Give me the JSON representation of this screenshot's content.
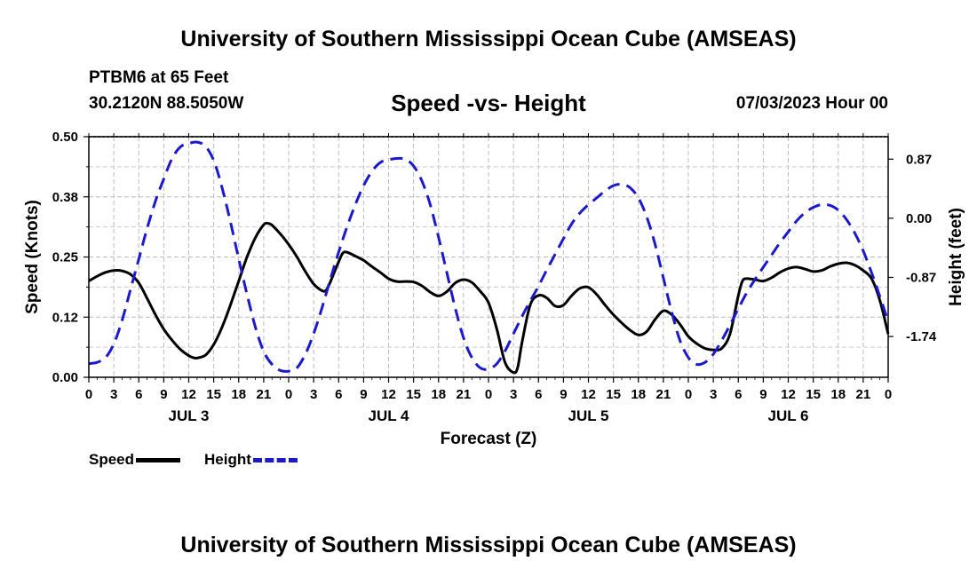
{
  "header": {
    "title": "University of Southern Mississippi Ocean Cube (AMSEAS)",
    "station": "PTBM6 at 65 Feet",
    "coordinates": "30.2120N  88.5050W",
    "chart_title": "Speed -vs- Height",
    "datetime": "07/03/2023 Hour 00"
  },
  "footer": {
    "title": "University of Southern Mississippi Ocean Cube (AMSEAS)"
  },
  "legend": {
    "speed_label": "Speed",
    "height_label": "Height"
  },
  "chart_data": {
    "type": "line",
    "title": "Speed -vs- Height",
    "xlabel": "Forecast (Z)",
    "ylabel_left": "Speed (Knots)",
    "ylabel_right": "Height (feet)",
    "x_range_hours": [
      0,
      96
    ],
    "x_tick_labels": [
      "0",
      "3",
      "6",
      "9",
      "12",
      "15",
      "18",
      "21",
      "0",
      "3",
      "6",
      "9",
      "12",
      "15",
      "18",
      "21",
      "0",
      "3",
      "6",
      "9",
      "12",
      "15",
      "18",
      "21",
      "0",
      "3",
      "6",
      "9",
      "12",
      "15",
      "18",
      "21",
      "0"
    ],
    "day_labels": [
      "JUL 3",
      "JUL 4",
      "JUL 5",
      "JUL 6"
    ],
    "left_axis": {
      "ylim": [
        0,
        0.5
      ],
      "ticks": [
        "0.00",
        "0.12",
        "0.25",
        "0.38",
        "0.50"
      ]
    },
    "right_axis": {
      "ylim": [
        -2.34,
        1.2
      ],
      "ticks": [
        "0.87",
        "0.00",
        "-0.87",
        "-1.74"
      ]
    },
    "grid": true,
    "series": [
      {
        "name": "Speed",
        "axis": "left",
        "color": "#000000",
        "style": "solid",
        "points": [
          [
            0,
            0.2
          ],
          [
            1,
            0.21
          ],
          [
            2,
            0.218
          ],
          [
            3,
            0.222
          ],
          [
            4,
            0.221
          ],
          [
            5,
            0.214
          ],
          [
            6,
            0.196
          ],
          [
            7,
            0.164
          ],
          [
            8,
            0.13
          ],
          [
            9,
            0.1
          ],
          [
            10,
            0.077
          ],
          [
            11,
            0.058
          ],
          [
            12,
            0.045
          ],
          [
            12.5,
            0.041
          ],
          [
            13,
            0.04
          ],
          [
            14,
            0.046
          ],
          [
            15,
            0.068
          ],
          [
            16,
            0.104
          ],
          [
            17,
            0.15
          ],
          [
            18,
            0.2
          ],
          [
            19,
            0.25
          ],
          [
            20,
            0.29
          ],
          [
            21,
            0.317
          ],
          [
            21.5,
            0.32
          ],
          [
            22,
            0.316
          ],
          [
            23,
            0.298
          ],
          [
            24,
            0.276
          ],
          [
            25,
            0.25
          ],
          [
            26,
            0.22
          ],
          [
            27,
            0.194
          ],
          [
            28,
            0.18
          ],
          [
            28.5,
            0.181
          ],
          [
            29,
            0.198
          ],
          [
            30,
            0.24
          ],
          [
            30.5,
            0.258
          ],
          [
            31,
            0.26
          ],
          [
            32,
            0.252
          ],
          [
            33,
            0.243
          ],
          [
            34,
            0.23
          ],
          [
            35,
            0.218
          ],
          [
            36,
            0.205
          ],
          [
            37,
            0.199
          ],
          [
            38,
            0.199
          ],
          [
            39,
            0.198
          ],
          [
            40,
            0.19
          ],
          [
            41,
            0.177
          ],
          [
            42,
            0.169
          ],
          [
            43,
            0.178
          ],
          [
            44,
            0.196
          ],
          [
            45,
            0.203
          ],
          [
            46,
            0.197
          ],
          [
            47,
            0.179
          ],
          [
            48,
            0.155
          ],
          [
            49,
            0.1
          ],
          [
            50,
            0.03
          ],
          [
            51,
            0.01
          ],
          [
            51.5,
            0.02
          ],
          [
            52,
            0.07
          ],
          [
            53,
            0.15
          ],
          [
            54,
            0.17
          ],
          [
            55,
            0.165
          ],
          [
            56,
            0.148
          ],
          [
            57,
            0.15
          ],
          [
            58,
            0.17
          ],
          [
            59,
            0.185
          ],
          [
            60,
            0.187
          ],
          [
            61,
            0.172
          ],
          [
            62,
            0.15
          ],
          [
            63,
            0.13
          ],
          [
            64,
            0.113
          ],
          [
            65,
            0.098
          ],
          [
            66,
            0.088
          ],
          [
            67,
            0.095
          ],
          [
            68,
            0.12
          ],
          [
            69,
            0.138
          ],
          [
            70,
            0.13
          ],
          [
            71,
            0.11
          ],
          [
            72,
            0.085
          ],
          [
            73,
            0.07
          ],
          [
            74,
            0.06
          ],
          [
            75,
            0.057
          ],
          [
            76,
            0.06
          ],
          [
            77,
            0.09
          ],
          [
            78,
            0.17
          ],
          [
            78.5,
            0.2
          ],
          [
            79,
            0.205
          ],
          [
            80,
            0.203
          ],
          [
            81,
            0.2
          ],
          [
            82,
            0.207
          ],
          [
            83,
            0.218
          ],
          [
            84,
            0.226
          ],
          [
            85,
            0.229
          ],
          [
            86,
            0.225
          ],
          [
            87,
            0.22
          ],
          [
            88,
            0.222
          ],
          [
            89,
            0.23
          ],
          [
            90,
            0.236
          ],
          [
            91,
            0.238
          ],
          [
            92,
            0.233
          ],
          [
            93,
            0.222
          ],
          [
            94,
            0.205
          ],
          [
            95,
            0.16
          ],
          [
            96,
            0.09
          ]
        ]
      },
      {
        "name": "Height",
        "axis": "right",
        "color": "#1a1acc",
        "style": "dashed",
        "points": [
          [
            0,
            -2.14
          ],
          [
            1,
            -2.12
          ],
          [
            2,
            -2.05
          ],
          [
            3,
            -1.85
          ],
          [
            4,
            -1.5
          ],
          [
            5,
            -1.05
          ],
          [
            6,
            -0.6
          ],
          [
            7,
            -0.15
          ],
          [
            8,
            0.25
          ],
          [
            9,
            0.58
          ],
          [
            10,
            0.88
          ],
          [
            11,
            1.05
          ],
          [
            12,
            1.1
          ],
          [
            13,
            1.12
          ],
          [
            14,
            1.06
          ],
          [
            15,
            0.85
          ],
          [
            16,
            0.45
          ],
          [
            17,
            -0.05
          ],
          [
            18,
            -0.6
          ],
          [
            19,
            -1.12
          ],
          [
            20,
            -1.6
          ],
          [
            21,
            -1.96
          ],
          [
            22,
            -2.15
          ],
          [
            23,
            -2.24
          ],
          [
            24,
            -2.25
          ],
          [
            25,
            -2.2
          ],
          [
            26,
            -2.0
          ],
          [
            27,
            -1.7
          ],
          [
            28,
            -1.32
          ],
          [
            29,
            -0.9
          ],
          [
            30,
            -0.5
          ],
          [
            31,
            -0.13
          ],
          [
            32,
            0.2
          ],
          [
            33,
            0.48
          ],
          [
            34,
            0.69
          ],
          [
            35,
            0.82
          ],
          [
            36,
            0.86
          ],
          [
            37,
            0.88
          ],
          [
            38,
            0.87
          ],
          [
            39,
            0.77
          ],
          [
            40,
            0.55
          ],
          [
            41,
            0.2
          ],
          [
            42,
            -0.28
          ],
          [
            43,
            -0.8
          ],
          [
            44,
            -1.32
          ],
          [
            45,
            -1.76
          ],
          [
            46,
            -2.05
          ],
          [
            47,
            -2.2
          ],
          [
            48,
            -2.22
          ],
          [
            49,
            -2.14
          ],
          [
            50,
            -1.95
          ],
          [
            51,
            -1.7
          ],
          [
            52,
            -1.45
          ],
          [
            53,
            -1.22
          ],
          [
            54,
            -1.0
          ],
          [
            55,
            -0.76
          ],
          [
            56,
            -0.53
          ],
          [
            57,
            -0.3
          ],
          [
            58,
            -0.08
          ],
          [
            59,
            0.08
          ],
          [
            60,
            0.2
          ],
          [
            61,
            0.3
          ],
          [
            62,
            0.4
          ],
          [
            63,
            0.48
          ],
          [
            64,
            0.5
          ],
          [
            65,
            0.45
          ],
          [
            66,
            0.3
          ],
          [
            67,
            0.02
          ],
          [
            68,
            -0.38
          ],
          [
            69,
            -0.88
          ],
          [
            70,
            -1.38
          ],
          [
            71,
            -1.8
          ],
          [
            72,
            -2.05
          ],
          [
            73,
            -2.15
          ],
          [
            74,
            -2.12
          ],
          [
            75,
            -2.0
          ],
          [
            76,
            -1.8
          ],
          [
            77,
            -1.57
          ],
          [
            78,
            -1.33
          ],
          [
            79,
            -1.1
          ],
          [
            80,
            -0.9
          ],
          [
            81,
            -0.72
          ],
          [
            82,
            -0.54
          ],
          [
            83,
            -0.36
          ],
          [
            84,
            -0.2
          ],
          [
            85,
            -0.04
          ],
          [
            86,
            0.08
          ],
          [
            87,
            0.16
          ],
          [
            88,
            0.2
          ],
          [
            89,
            0.19
          ],
          [
            90,
            0.12
          ],
          [
            91,
            -0.02
          ],
          [
            92,
            -0.22
          ],
          [
            93,
            -0.48
          ],
          [
            94,
            -0.8
          ],
          [
            95,
            -1.15
          ],
          [
            96,
            -1.52
          ]
        ]
      }
    ]
  }
}
